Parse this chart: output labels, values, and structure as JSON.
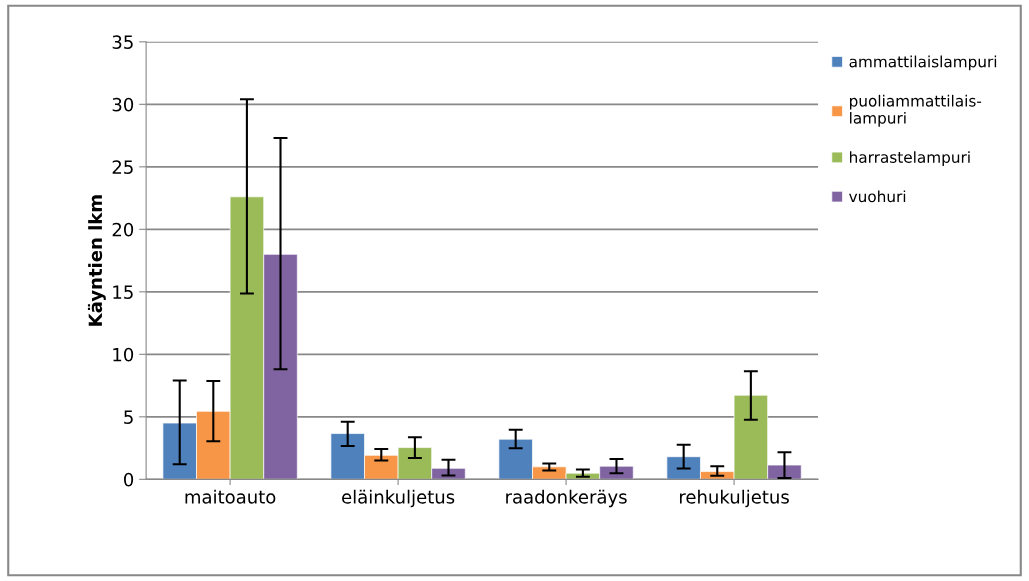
{
  "chart_data": {
    "type": "bar",
    "ylabel": "Käyntien lkm",
    "categories": [
      "maitoauto",
      "eläinkuljetus",
      "raadonkeräys",
      "rehukuljetus"
    ],
    "series": [
      {
        "name": "ammattilaislampuri",
        "color": "#4f81bd",
        "values": [
          4.5,
          3.66,
          3.21,
          1.81
        ],
        "errors": [
          [
            1.2,
            7.9
          ],
          [
            2.67,
            4.6
          ],
          [
            2.49,
            3.97
          ],
          [
            0.86,
            2.76
          ]
        ]
      },
      {
        "name": "puoliammattilais-\nlampuri",
        "color": "#f79646",
        "values": [
          5.44,
          1.92,
          1.0,
          0.62
        ],
        "errors": [
          [
            3.04,
            7.87
          ],
          [
            1.5,
            2.43
          ],
          [
            0.7,
            1.27
          ],
          [
            0.29,
            1.05
          ]
        ]
      },
      {
        "name": "harrastelampuri",
        "color": "#9bbb59",
        "values": [
          22.6,
          2.54,
          0.49,
          6.73
        ],
        "errors": [
          [
            14.87,
            30.4
          ],
          [
            1.71,
            3.36
          ],
          [
            0.21,
            0.78
          ],
          [
            4.76,
            8.65
          ]
        ]
      },
      {
        "name": "vuohuri",
        "color": "#8064a2",
        "values": [
          18.0,
          0.88,
          1.05,
          1.14
        ],
        "errors": [
          [
            8.8,
            27.3
          ],
          [
            0.3,
            1.57
          ],
          [
            0.49,
            1.62
          ],
          [
            0.11,
            2.16
          ]
        ]
      }
    ],
    "ylim": [
      0,
      35
    ],
    "yticks": [
      0,
      5,
      10,
      15,
      20,
      25,
      30,
      35
    ],
    "grid": "y",
    "legend": "right"
  }
}
